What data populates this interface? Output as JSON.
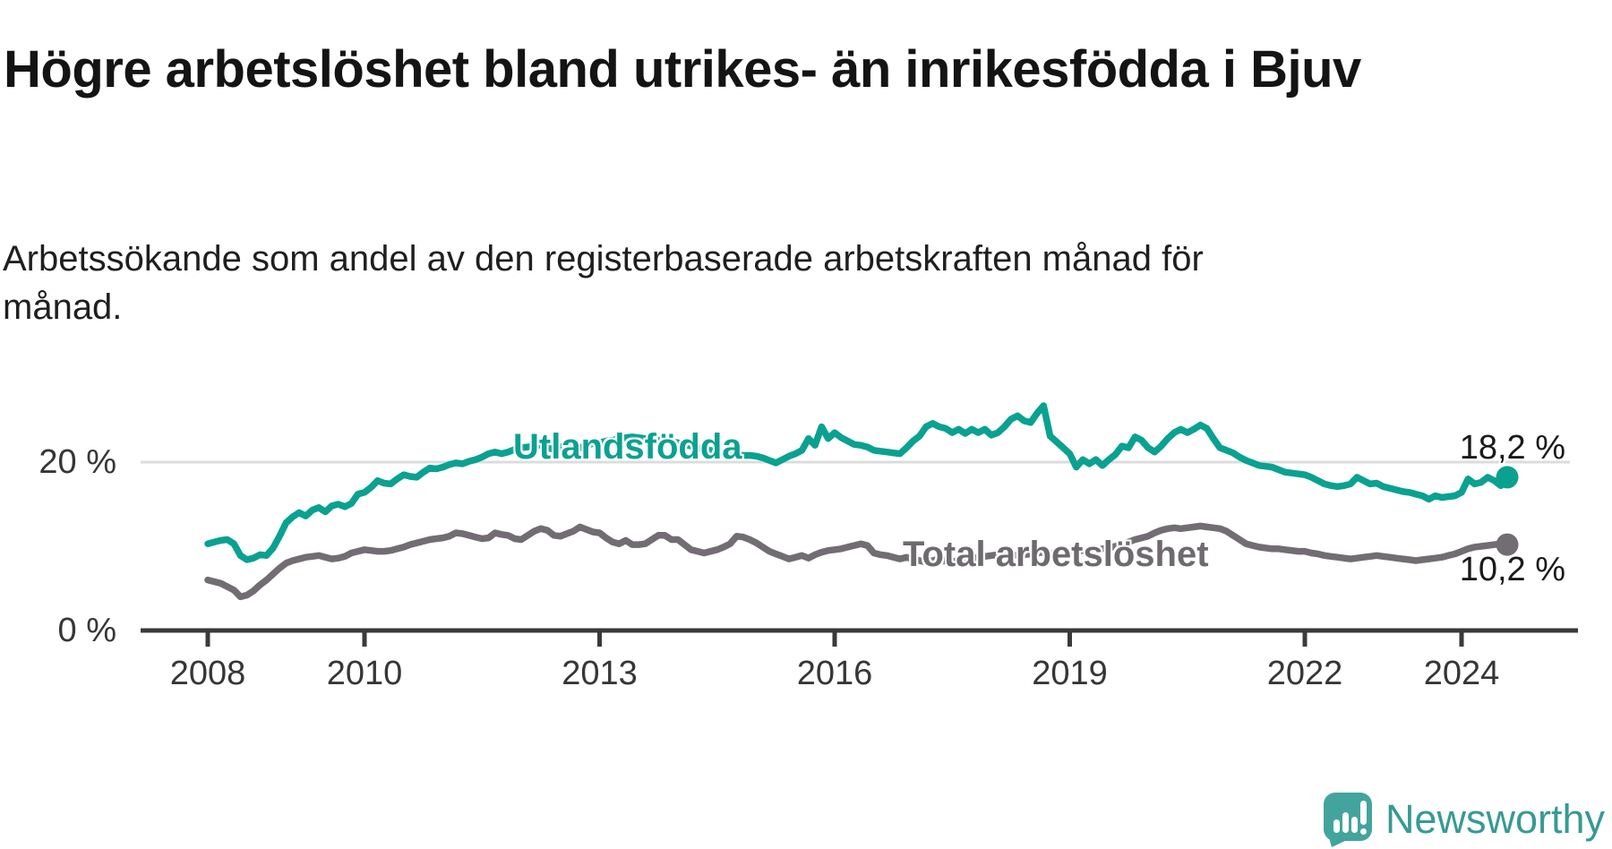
{
  "title": "Högre arbetslöshet bland utrikes- än inrikesfödda i Bjuv",
  "subtitle": "Arbetssökande som andel av den registerbaserade arbetskraften månad för månad.",
  "y_axis": {
    "ticks": [
      {
        "label": "20 %",
        "value": 20
      },
      {
        "label": "0 %",
        "value": 0
      }
    ]
  },
  "branding": {
    "logo_text": "Newsworthy",
    "icon": "newsworthy-speech-bubble-barchart-icon",
    "icon_color": "#43a49d",
    "text_color": "#379a94"
  },
  "chart_data": {
    "type": "line",
    "frequency": "monthly",
    "x_start": "2008-01",
    "x_end": "2024-08",
    "grid": "horizontal-20%-only",
    "ylim": [
      0,
      28
    ],
    "x_ticks": [
      {
        "year": 2008,
        "label": "2008"
      },
      {
        "year": 2010,
        "label": "2010"
      },
      {
        "year": 2013,
        "label": "2013"
      },
      {
        "year": 2016,
        "label": "2016"
      },
      {
        "year": 2019,
        "label": "2019"
      },
      {
        "year": 2022,
        "label": "2022"
      },
      {
        "year": 2024,
        "label": "2024"
      }
    ],
    "series": [
      {
        "name": "Utlandsfödda",
        "color": "#0aa191",
        "end_label": "18,2 %",
        "end_value": 18.2,
        "values": [
          10.3,
          10.5,
          10.7,
          10.8,
          10.3,
          8.9,
          8.4,
          8.6,
          9.0,
          8.9,
          9.8,
          11.2,
          12.8,
          13.5,
          14.0,
          13.6,
          14.3,
          14.6,
          14.1,
          14.8,
          15.0,
          14.7,
          15.1,
          16.2,
          16.4,
          17.0,
          17.8,
          17.5,
          17.4,
          18.0,
          18.5,
          18.3,
          18.2,
          18.8,
          19.3,
          19.2,
          19.4,
          19.7,
          19.9,
          19.8,
          20.1,
          20.3,
          20.6,
          21.0,
          21.2,
          21.0,
          21.2,
          21.5,
          21.7,
          21.8,
          21.9,
          22.0,
          21.7,
          21.5,
          21.8,
          22.0,
          21.9,
          21.7,
          22.0,
          22.2,
          22.3,
          22.5,
          22.6,
          22.8,
          22.9,
          23.0,
          22.9,
          22.8,
          22.7,
          22.6,
          22.5,
          22.4,
          22.3,
          22.1,
          21.9,
          21.7,
          21.5,
          21.4,
          21.2,
          21.1,
          21.0,
          20.9,
          20.8,
          20.8,
          20.7,
          20.5,
          20.2,
          19.9,
          20.3,
          20.7,
          21.0,
          21.4,
          22.8,
          22.0,
          24.2,
          22.8,
          23.5,
          22.9,
          22.5,
          22.1,
          22.0,
          21.8,
          21.4,
          21.3,
          21.2,
          21.1,
          21.0,
          21.7,
          22.5,
          23.1,
          24.2,
          24.6,
          24.2,
          24.0,
          23.5,
          23.9,
          23.4,
          23.9,
          23.5,
          23.9,
          23.2,
          23.5,
          24.2,
          25.1,
          25.5,
          24.9,
          24.7,
          25.8,
          26.7,
          23.1,
          22.4,
          21.7,
          21.0,
          19.4,
          20.3,
          19.8,
          20.3,
          19.6,
          20.3,
          20.9,
          21.9,
          21.7,
          23.0,
          22.6,
          21.7,
          21.2,
          21.9,
          22.8,
          23.5,
          23.9,
          23.5,
          23.9,
          24.4,
          24.0,
          22.8,
          21.7,
          21.4,
          21.1,
          20.6,
          20.2,
          19.9,
          19.6,
          19.5,
          19.4,
          19.1,
          18.8,
          18.7,
          18.6,
          18.5,
          18.2,
          17.8,
          17.4,
          17.2,
          17.1,
          17.2,
          17.4,
          18.2,
          17.8,
          17.4,
          17.5,
          17.1,
          16.9,
          16.7,
          16.5,
          16.4,
          16.2,
          16.0,
          15.6,
          16.0,
          15.8,
          15.9,
          16.0,
          16.4,
          18.0,
          17.4,
          17.6,
          18.2,
          17.8,
          17.2,
          18.2
        ]
      },
      {
        "name": "Total arbetslöshet",
        "color": "#716d72",
        "end_label": "10,2 %",
        "end_value": 10.2,
        "values": [
          6.0,
          5.8,
          5.6,
          5.2,
          4.8,
          4.0,
          4.2,
          4.7,
          5.4,
          6.0,
          6.7,
          7.4,
          8.0,
          8.3,
          8.5,
          8.7,
          8.8,
          8.9,
          8.7,
          8.5,
          8.6,
          8.8,
          9.2,
          9.4,
          9.6,
          9.5,
          9.4,
          9.4,
          9.5,
          9.7,
          9.9,
          10.2,
          10.4,
          10.6,
          10.8,
          10.9,
          11.0,
          11.2,
          11.6,
          11.5,
          11.3,
          11.1,
          10.9,
          11.0,
          11.6,
          11.4,
          11.3,
          10.9,
          10.8,
          11.3,
          11.8,
          12.1,
          11.9,
          11.3,
          11.2,
          11.5,
          11.8,
          12.3,
          12.0,
          11.7,
          11.6,
          11.0,
          10.5,
          10.3,
          10.7,
          10.2,
          10.2,
          10.3,
          10.8,
          11.3,
          11.3,
          10.8,
          10.8,
          10.2,
          9.6,
          9.4,
          9.2,
          9.4,
          9.6,
          9.9,
          10.3,
          11.2,
          11.1,
          10.8,
          10.4,
          9.9,
          9.4,
          9.1,
          8.8,
          8.5,
          8.7,
          8.9,
          8.6,
          9.0,
          9.3,
          9.5,
          9.6,
          9.7,
          9.9,
          10.1,
          10.3,
          10.1,
          9.2,
          9.0,
          8.9,
          8.7,
          8.5,
          8.7,
          8.5,
          8.3,
          8.1,
          8.3,
          8.5,
          8.2,
          8.1,
          8.4,
          8.5,
          8.6,
          8.7,
          8.8,
          8.9,
          9.0,
          9.1,
          9.0,
          8.9,
          9.0,
          9.1,
          9.2,
          9.3,
          9.2,
          9.1,
          9.2,
          9.3,
          9.4,
          9.5,
          9.4,
          9.6,
          9.7,
          9.8,
          10.0,
          10.2,
          10.5,
          10.8,
          11.0,
          11.2,
          11.6,
          11.9,
          12.1,
          12.2,
          12.1,
          12.2,
          12.3,
          12.4,
          12.3,
          12.2,
          12.1,
          11.8,
          11.3,
          10.8,
          10.3,
          10.1,
          9.9,
          9.8,
          9.7,
          9.7,
          9.6,
          9.5,
          9.4,
          9.4,
          9.2,
          9.1,
          8.9,
          8.8,
          8.7,
          8.6,
          8.5,
          8.6,
          8.7,
          8.8,
          8.9,
          8.8,
          8.7,
          8.6,
          8.5,
          8.4,
          8.3,
          8.4,
          8.5,
          8.6,
          8.7,
          8.9,
          9.1,
          9.4,
          9.7,
          9.9,
          10.0,
          10.1,
          10.2,
          10.3,
          10.2
        ]
      }
    ]
  }
}
